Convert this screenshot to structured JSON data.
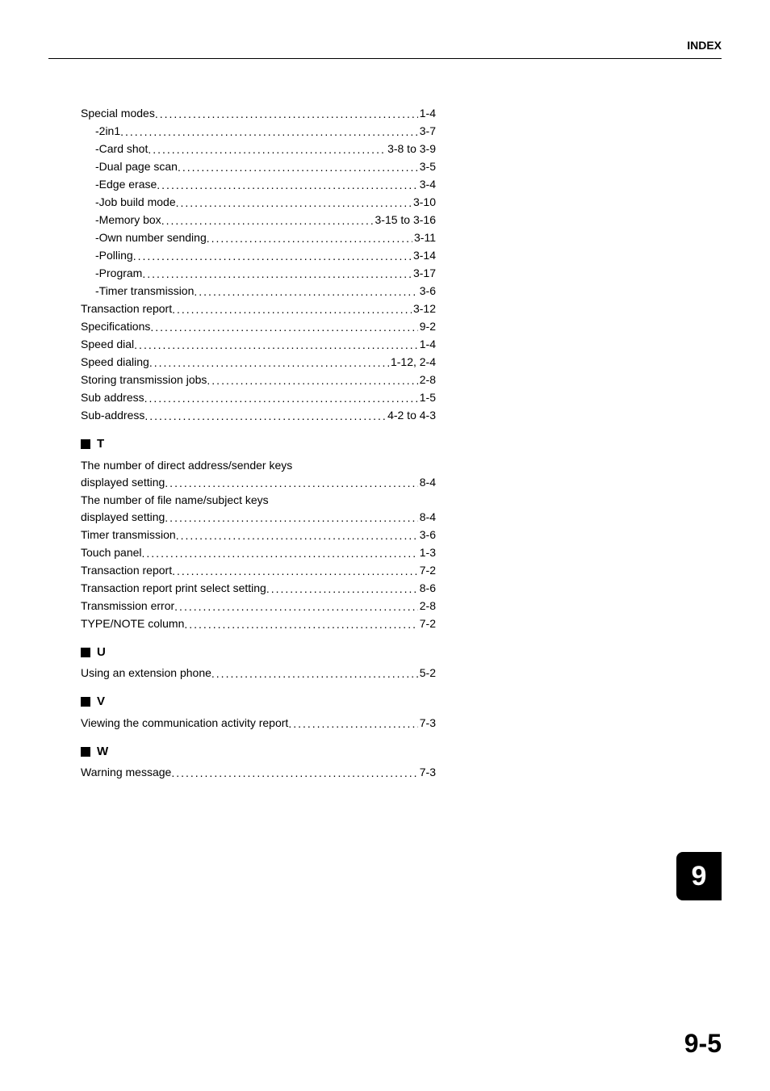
{
  "header": "INDEX",
  "chapter_tab": "9",
  "page_number": "9-5",
  "colors": {
    "background": "#ffffff",
    "text": "#000000",
    "tab_bg": "#000000",
    "tab_text": "#ffffff"
  },
  "typography": {
    "body_fontsize": 14,
    "header_fontsize": 14,
    "heading_fontsize": 15,
    "tab_fontsize": 34,
    "page_number_fontsize": 32
  },
  "sections": [
    {
      "heading": null,
      "entries": [
        {
          "label": "Special modes",
          "page": "1-4",
          "indent": false
        },
        {
          "label": "-2in1",
          "page": "3-7",
          "indent": true
        },
        {
          "label": "-Card shot",
          "page": "3-8 to 3-9",
          "indent": true
        },
        {
          "label": "-Dual page scan",
          "page": "3-5",
          "indent": true
        },
        {
          "label": "-Edge erase",
          "page": "3-4",
          "indent": true
        },
        {
          "label": "-Job build mode",
          "page": "3-10",
          "indent": true
        },
        {
          "label": "-Memory box",
          "page": "3-15 to 3-16",
          "indent": true
        },
        {
          "label": "-Own number sending",
          "page": "3-11",
          "indent": true
        },
        {
          "label": "-Polling",
          "page": "3-14",
          "indent": true
        },
        {
          "label": "-Program",
          "page": "3-17",
          "indent": true
        },
        {
          "label": "-Timer transmission",
          "page": "3-6",
          "indent": true
        },
        {
          "label": "Transaction report",
          "page": "3-12",
          "indent": false
        },
        {
          "label": "Specifications",
          "page": "9-2",
          "indent": false
        },
        {
          "label": "Speed dial",
          "page": "1-4",
          "indent": false
        },
        {
          "label": "Speed dialing",
          "page": "1-12, 2-4",
          "indent": false
        },
        {
          "label": "Storing transmission jobs",
          "page": "2-8",
          "indent": false
        },
        {
          "label": "Sub address",
          "page": "1-5",
          "indent": false
        },
        {
          "label": "Sub-address",
          "page": "4-2 to 4-3",
          "indent": false
        }
      ]
    },
    {
      "heading": "T",
      "entries": [
        {
          "label_line1": "The number of direct address/sender keys",
          "label": "displayed setting",
          "page": "8-4",
          "indent": false,
          "multiline": true
        },
        {
          "label_line1": "The number of file name/subject keys",
          "label": "displayed setting",
          "page": "8-4",
          "indent": false,
          "multiline": true
        },
        {
          "label": "Timer transmission",
          "page": "3-6",
          "indent": false
        },
        {
          "label": "Touch panel",
          "page": "1-3",
          "indent": false
        },
        {
          "label": "Transaction report",
          "page": "7-2",
          "indent": false
        },
        {
          "label": "Transaction report print select setting",
          "page": "8-6",
          "indent": false
        },
        {
          "label": "Transmission error",
          "page": "2-8",
          "indent": false
        },
        {
          "label": "TYPE/NOTE column",
          "page": "7-2",
          "indent": false
        }
      ]
    },
    {
      "heading": "U",
      "entries": [
        {
          "label": "Using an extension phone",
          "page": "5-2",
          "indent": false
        }
      ]
    },
    {
      "heading": "V",
      "entries": [
        {
          "label": "Viewing the communication activity report",
          "page": "7-3",
          "indent": false
        }
      ]
    },
    {
      "heading": "W",
      "entries": [
        {
          "label": "Warning message",
          "page": "7-3",
          "indent": false
        }
      ]
    }
  ]
}
